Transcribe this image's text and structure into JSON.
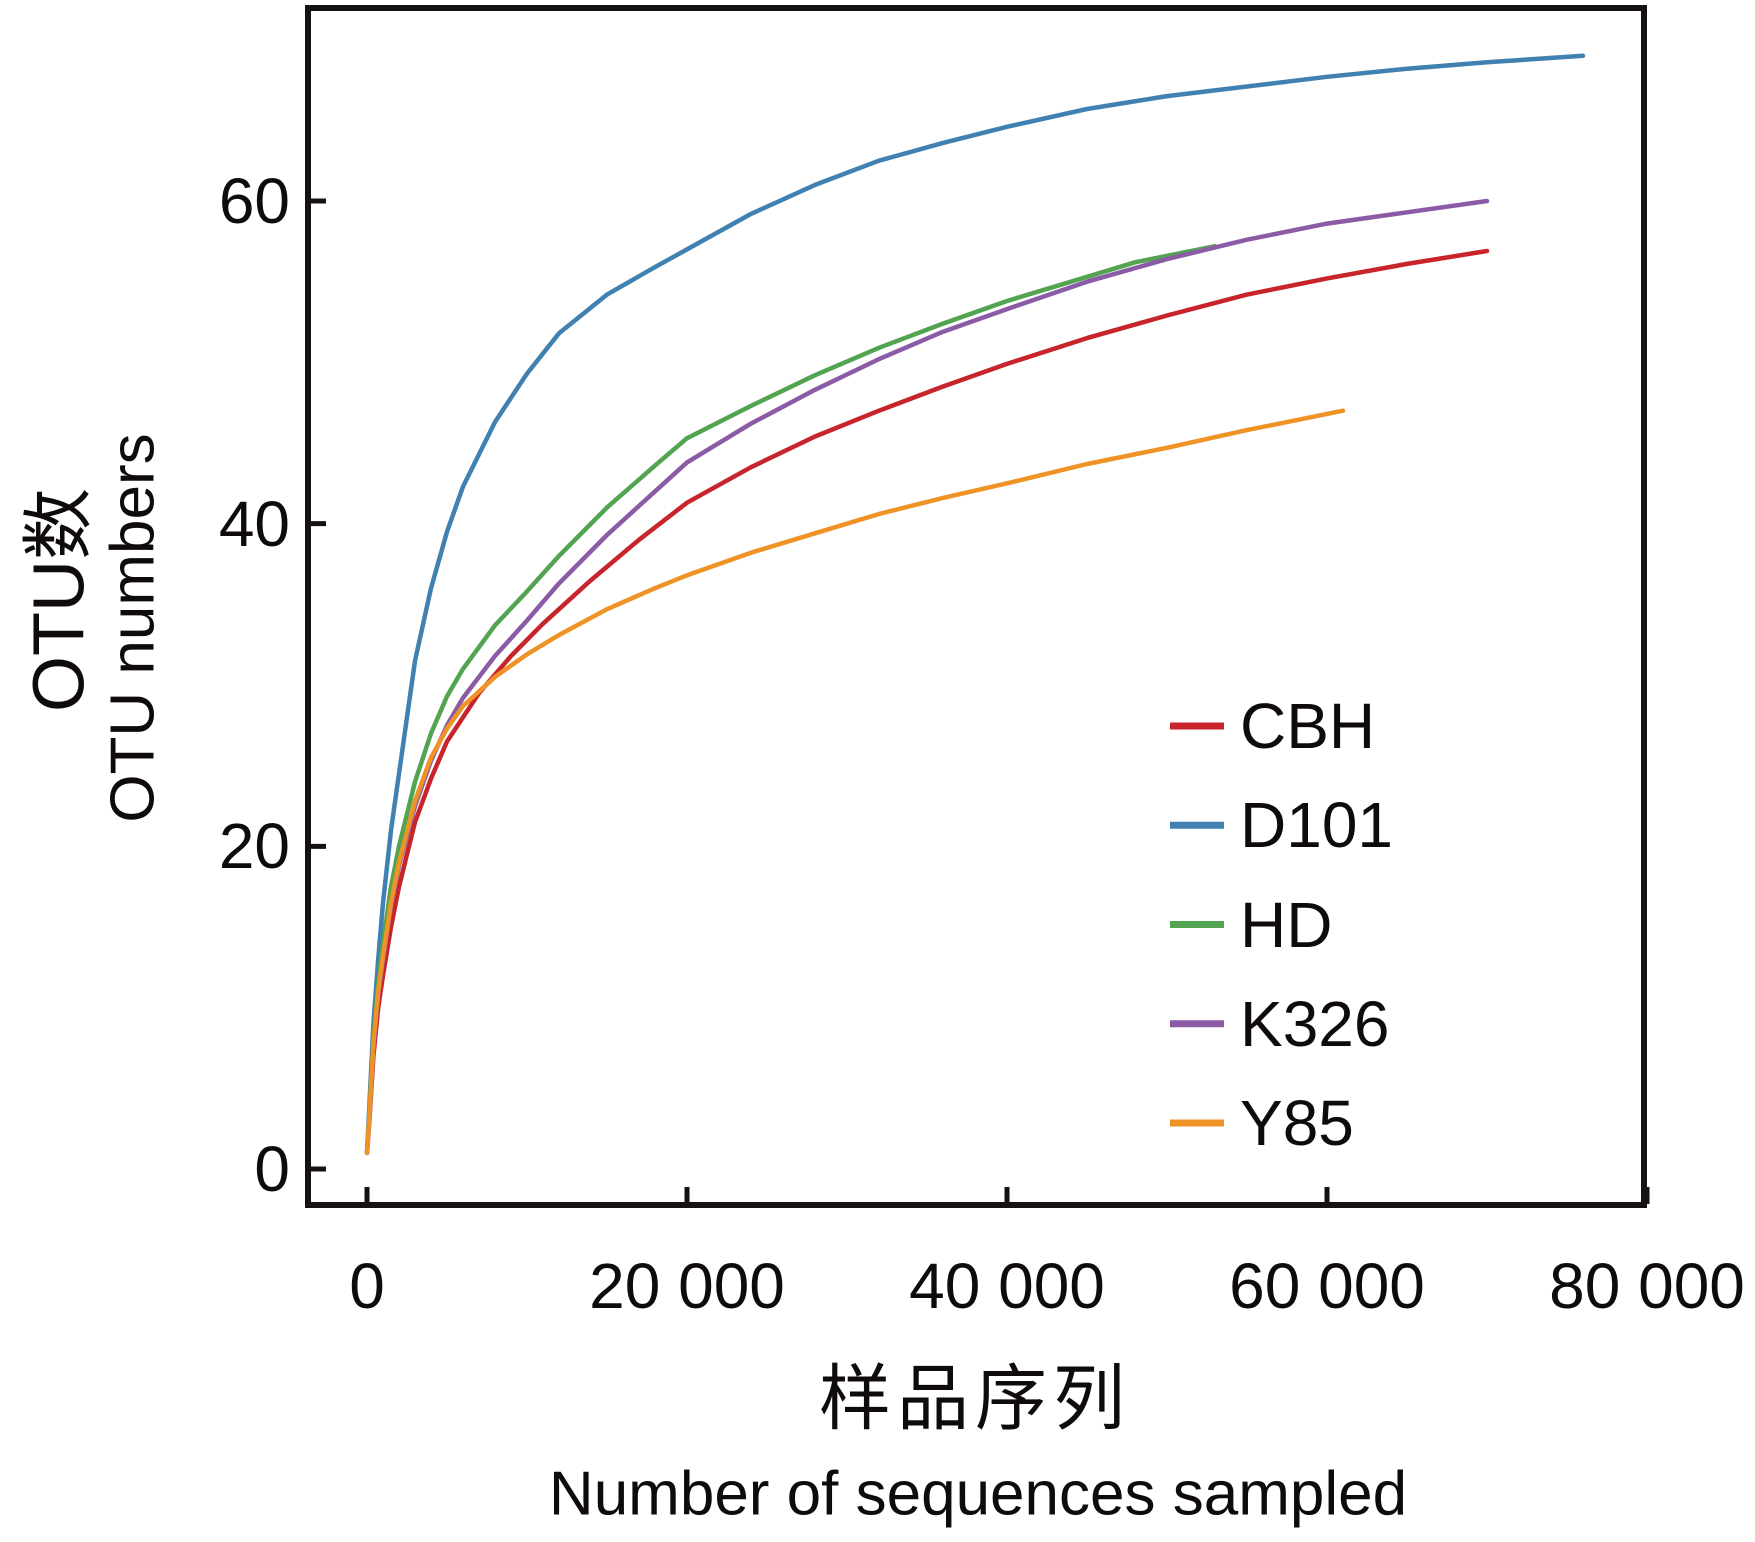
{
  "figure": {
    "background": "#ffffff",
    "axis_color": "#171212"
  },
  "x_axis": {
    "label_cn": "样品序列",
    "label_en": "Number of sequences sampled",
    "range": [
      0,
      80000
    ],
    "ticks": [
      {
        "value": 0,
        "label": "0"
      },
      {
        "value": 20000,
        "label": "20 000"
      },
      {
        "value": 40000,
        "label": "40 000"
      },
      {
        "value": 60000,
        "label": "60 000"
      },
      {
        "value": 80000,
        "label": "80 000"
      }
    ]
  },
  "y_axis": {
    "label_cn": "OTU数",
    "label_en": "OTU numbers",
    "range": [
      0,
      60
    ],
    "ticks": [
      {
        "value": 0,
        "label": "0"
      },
      {
        "value": 20,
        "label": "20"
      },
      {
        "value": 40,
        "label": "40"
      },
      {
        "value": 60,
        "label": "60"
      }
    ]
  },
  "legend": {
    "position": "inside-right-lower",
    "items": [
      "CBH",
      "D101",
      "HD",
      "K326",
      "Y85"
    ]
  },
  "chart_data": {
    "type": "line",
    "title": "",
    "xlabel": "Number of sequences sampled",
    "ylabel": "OTU numbers",
    "xlim": [
      0,
      80000
    ],
    "ylim": [
      0,
      60
    ],
    "grid": false,
    "series": [
      {
        "name": "CBH",
        "color": "#c8242b",
        "points": [
          [
            0,
            1
          ],
          [
            150,
            3
          ],
          [
            400,
            7
          ],
          [
            700,
            10
          ],
          [
            1000,
            12
          ],
          [
            1500,
            15
          ],
          [
            2000,
            17.5
          ],
          [
            3000,
            21.5
          ],
          [
            4000,
            24.2
          ],
          [
            5000,
            26.5
          ],
          [
            7000,
            29.5
          ],
          [
            9000,
            31.8
          ],
          [
            11000,
            33.8
          ],
          [
            14000,
            36.5
          ],
          [
            17000,
            39
          ],
          [
            20000,
            41.3
          ],
          [
            24000,
            43.5
          ],
          [
            28000,
            45.4
          ],
          [
            32000,
            47
          ],
          [
            36000,
            48.5
          ],
          [
            40000,
            49.9
          ],
          [
            45000,
            51.5
          ],
          [
            50000,
            52.9
          ],
          [
            55000,
            54.2
          ],
          [
            60000,
            55.2
          ],
          [
            65000,
            56.1
          ],
          [
            70000,
            56.9
          ]
        ]
      },
      {
        "name": "D101",
        "color": "#4181b1",
        "points": [
          [
            0,
            1
          ],
          [
            150,
            4
          ],
          [
            400,
            9
          ],
          [
            700,
            13
          ],
          [
            1000,
            16.5
          ],
          [
            1500,
            21
          ],
          [
            2000,
            24.5
          ],
          [
            3000,
            31.5
          ],
          [
            4000,
            36
          ],
          [
            5000,
            39.5
          ],
          [
            6000,
            42.3
          ],
          [
            8000,
            46.3
          ],
          [
            10000,
            49.3
          ],
          [
            12000,
            51.8
          ],
          [
            15000,
            54.2
          ],
          [
            18000,
            55.9
          ],
          [
            20000,
            57
          ],
          [
            24000,
            59.2
          ],
          [
            28000,
            61
          ],
          [
            32000,
            62.5
          ],
          [
            36000,
            63.6
          ],
          [
            40000,
            64.6
          ],
          [
            45000,
            65.7
          ],
          [
            50000,
            66.5
          ],
          [
            55000,
            67.1
          ],
          [
            60000,
            67.7
          ],
          [
            65000,
            68.2
          ],
          [
            70000,
            68.6
          ],
          [
            76000,
            69
          ]
        ]
      },
      {
        "name": "HD",
        "color": "#52a451",
        "points": [
          [
            0,
            1
          ],
          [
            150,
            3.5
          ],
          [
            400,
            8
          ],
          [
            700,
            11.5
          ],
          [
            1000,
            14
          ],
          [
            1500,
            17.5
          ],
          [
            2000,
            20
          ],
          [
            3000,
            24
          ],
          [
            4000,
            27
          ],
          [
            5000,
            29.3
          ],
          [
            6000,
            31
          ],
          [
            8000,
            33.7
          ],
          [
            10000,
            35.8
          ],
          [
            12000,
            38
          ],
          [
            15000,
            41
          ],
          [
            18000,
            43.6
          ],
          [
            20000,
            45.3
          ],
          [
            24000,
            47.3
          ],
          [
            28000,
            49.2
          ],
          [
            32000,
            50.9
          ],
          [
            36000,
            52.4
          ],
          [
            40000,
            53.8
          ],
          [
            44000,
            55
          ],
          [
            48000,
            56.2
          ],
          [
            53000,
            57.2
          ]
        ]
      },
      {
        "name": "K326",
        "color": "#8c5ba6",
        "points": [
          [
            0,
            1
          ],
          [
            150,
            3.2
          ],
          [
            400,
            7.5
          ],
          [
            700,
            10.8
          ],
          [
            1000,
            13
          ],
          [
            1500,
            16.3
          ],
          [
            2000,
            18.8
          ],
          [
            3000,
            22.5
          ],
          [
            4000,
            25.3
          ],
          [
            5000,
            27.5
          ],
          [
            6000,
            29.2
          ],
          [
            8000,
            31.8
          ],
          [
            10000,
            34
          ],
          [
            12000,
            36.3
          ],
          [
            15000,
            39.3
          ],
          [
            18000,
            42
          ],
          [
            20000,
            43.8
          ],
          [
            24000,
            46.2
          ],
          [
            28000,
            48.3
          ],
          [
            32000,
            50.2
          ],
          [
            36000,
            51.9
          ],
          [
            40000,
            53.3
          ],
          [
            45000,
            55
          ],
          [
            50000,
            56.4
          ],
          [
            55000,
            57.6
          ],
          [
            60000,
            58.6
          ],
          [
            65000,
            59.3
          ],
          [
            70000,
            60
          ]
        ]
      },
      {
        "name": "Y85",
        "color": "#ef9327",
        "points": [
          [
            0,
            1
          ],
          [
            150,
            3.3
          ],
          [
            400,
            7.8
          ],
          [
            700,
            11
          ],
          [
            1000,
            13.2
          ],
          [
            1500,
            16.5
          ],
          [
            2000,
            19
          ],
          [
            3000,
            22.8
          ],
          [
            4000,
            25.5
          ],
          [
            5000,
            27.3
          ],
          [
            6000,
            28.7
          ],
          [
            8000,
            30.5
          ],
          [
            10000,
            31.9
          ],
          [
            12000,
            33.1
          ],
          [
            15000,
            34.7
          ],
          [
            18000,
            36
          ],
          [
            20000,
            36.8
          ],
          [
            24000,
            38.2
          ],
          [
            28000,
            39.4
          ],
          [
            32000,
            40.6
          ],
          [
            36000,
            41.6
          ],
          [
            40000,
            42.5
          ],
          [
            45000,
            43.7
          ],
          [
            50000,
            44.7
          ],
          [
            55000,
            45.8
          ],
          [
            58000,
            46.4
          ],
          [
            61000,
            47
          ]
        ]
      }
    ]
  }
}
